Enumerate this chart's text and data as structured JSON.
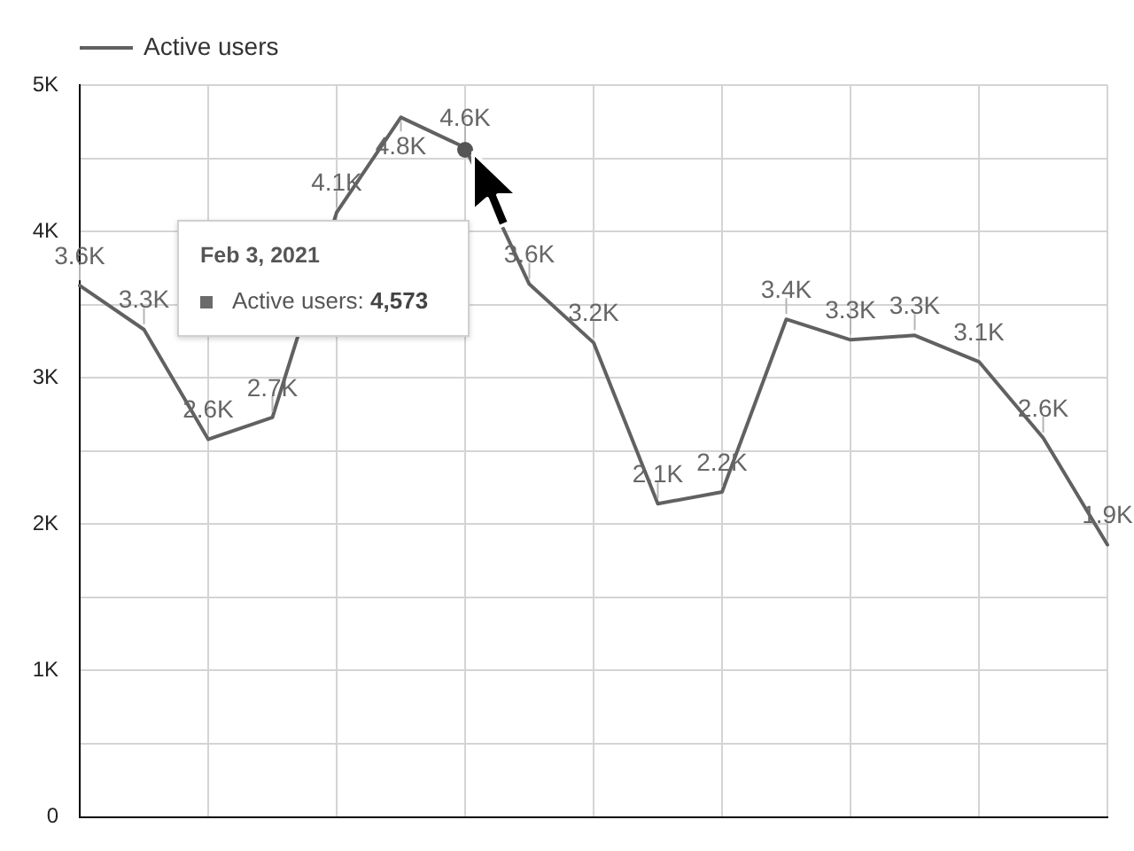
{
  "chart_data": {
    "type": "line",
    "categories": [
      null,
      null,
      null,
      null,
      null,
      null,
      null,
      null,
      null,
      null,
      null,
      null,
      null,
      null,
      null,
      null,
      null
    ],
    "series": [
      {
        "name": "Active users",
        "color": "#616161",
        "values": [
          3630,
          3330,
          2580,
          2730,
          4130,
          4780,
          4573,
          3640,
          3240,
          2140,
          2220,
          3400,
          3260,
          3290,
          3110,
          2590,
          1860
        ],
        "value_labels": [
          "3.6K",
          "3.3K",
          "2.6K",
          "2.7K",
          "4.1K",
          "4.8K",
          "4.6K",
          "3.6K",
          "3.2K",
          "2.1K",
          "2.2K",
          "3.4K",
          "3.3K",
          "3.3K",
          "3.1K",
          "2.6K",
          "1.9K"
        ]
      }
    ],
    "ylim": [
      0,
      5000
    ],
    "yticks": [
      0,
      {
        "value": 500,
        "label": null
      },
      {
        "value": 1000,
        "label": "1K"
      },
      {
        "value": 1500,
        "label": null
      },
      {
        "value": 2000,
        "label": "2K"
      },
      {
        "value": 2500,
        "label": null
      },
      {
        "value": 3000,
        "label": "3K"
      },
      {
        "value": 3500,
        "label": null
      },
      {
        "value": 4000,
        "label": "4K"
      },
      {
        "value": 4500,
        "label": null
      },
      {
        "value": 5000,
        "label": "5K"
      }
    ],
    "grid": true,
    "legend": "top left",
    "marker": "none",
    "line_style": "solid",
    "annotations": [
      "Feb 3, 2021",
      "Active users: 4,573"
    ]
  }
}
